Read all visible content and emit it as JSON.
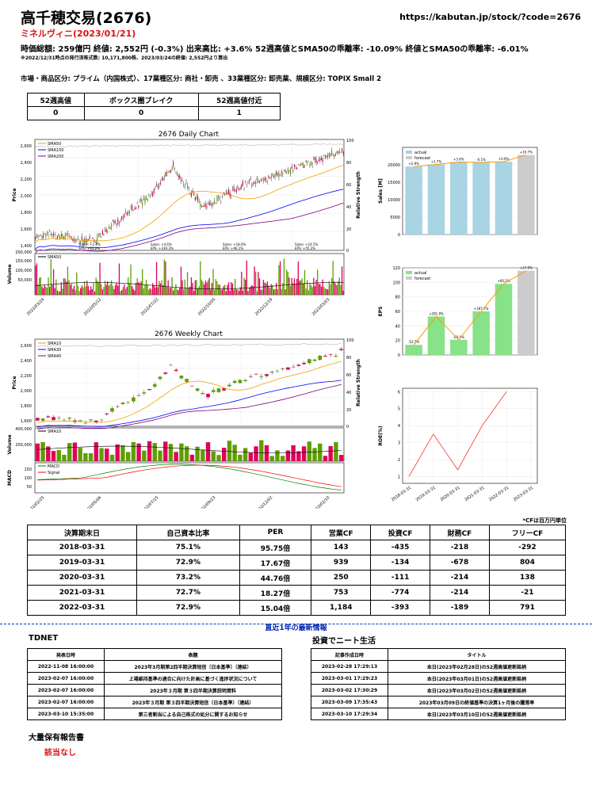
{
  "header": {
    "title": "高千穂交易(2676)",
    "url": "https://kabutan.jp/stock/?code=2676",
    "subtitle": "ミネルヴィニ(2023/01/21)",
    "summary": "時価総額: 259億円  終値: 2,552円 (-0.3%)  出来高比: +3.6%  52週高値とSMA50の乖離率: -10.09%  終値とSMA50の乖離率: -6.01%",
    "note": "※2022/12/31時点の発行済株式数: 10,171,800株、2023/03/24の終値: 2,552円より算出",
    "market": "市場・商品区分: プライム（内国株式）、17業種区分: 商社・卸売 、33業種区分: 卸売業、規模区分: TOPIX Small 2"
  },
  "table52": {
    "headers": [
      "52週高値",
      "ボックス圏ブレイク",
      "52週高値付近"
    ],
    "values": [
      "0",
      "0",
      "1"
    ]
  },
  "daily": {
    "title": "2676 Daily Chart",
    "ylabel": "Price",
    "ylabel2": "Relative Strength",
    "vol_label": "Volume",
    "legend": [
      "SMA50",
      "SMA150",
      "SMA200"
    ],
    "vol_legend": "SMA50",
    "yticks": [
      "2,600",
      "2,400",
      "2,200",
      "2,000",
      "1,800",
      "1,600",
      "1,400"
    ],
    "rsticks": [
      "100",
      "80",
      "60",
      "40",
      "20",
      "0"
    ],
    "vticks": [
      "200,000",
      "150,000",
      "100,000",
      "50,000"
    ],
    "xticks": [
      "2022/03/24",
      "2022/05/12",
      "2022/07/22",
      "2022/10/05",
      "2022/12/19",
      "2023/03/03"
    ],
    "annotations": [
      {
        "label": "Sales: +1.9%\nEPS: +63.2%"
      },
      {
        "label": "Sales: +4.6%\nEPS: +339.3%"
      },
      {
        "label": "Sales: +18.0%\nEPS: +96.1%"
      },
      {
        "label": "Sales: +14.5%\nEPS: +55.3%"
      }
    ]
  },
  "weekly": {
    "title": "2676 Weekly Chart",
    "ylabel": "Price",
    "ylabel2": "Relative Strength",
    "vol_label": "Volume",
    "macd_label": "MACD",
    "legend": [
      "SMA10",
      "SMA30",
      "SMA40"
    ],
    "vol_legend": "SMA10",
    "macd_legend": [
      "MACD",
      "Signal"
    ],
    "yticks": [
      "2,600",
      "2,400",
      "2,200",
      "2,000",
      "1,800",
      "1,600"
    ],
    "rsticks": [
      "100",
      "80",
      "60",
      "40",
      "20",
      "0"
    ],
    "vticks": [
      "400,000",
      "200,000"
    ],
    "mticks": [
      "150",
      "100",
      "50"
    ],
    "xticks": [
      "2022/02/25",
      "2022/05/06",
      "2022/07/15",
      "2022/09/23",
      "2022/12/02",
      "2023/02/10"
    ]
  },
  "chart_data": [
    {
      "type": "bar",
      "ylabel": "Sales [M]",
      "categories": [
        "2018-03",
        "2019-03",
        "2020-03",
        "2021-03",
        "2022-03",
        "2023-03"
      ],
      "series": [
        {
          "name": "actual",
          "values": [
            19500,
            20100,
            20800,
            20700,
            20900,
            null
          ]
        },
        {
          "name": "forecast",
          "values": [
            null,
            null,
            null,
            null,
            null,
            22800
          ]
        }
      ],
      "growth_labels": [
        "+2.9%",
        "+1.7%",
        "+3.6%",
        "-0.1%",
        "+0.9%",
        "+10.7%"
      ],
      "yticks": [
        "20000",
        "15000",
        "10000",
        "5000",
        "0"
      ],
      "ylim": [
        0,
        25000
      ],
      "colors": {
        "actual": "#a8d4e4",
        "forecast": "#cccccc",
        "line": "#ff9900"
      }
    },
    {
      "type": "bar",
      "ylabel": "EPS",
      "categories": [
        "2018-03",
        "2019-03",
        "2020-03",
        "2021-03",
        "2022-03",
        "2023-03"
      ],
      "series": [
        {
          "name": "actual",
          "values": [
            14,
            53,
            21,
            60,
            98,
            null
          ]
        },
        {
          "name": "forecast",
          "values": [
            null,
            null,
            null,
            null,
            null,
            116
          ]
        }
      ],
      "growth_labels": [
        "-52.7%",
        "+281.8%",
        "-60.0%",
        "+187.7%",
        "+60.2%",
        "+17.9%"
      ],
      "yticks": [
        "120",
        "100",
        "80",
        "60",
        "40",
        "20",
        "0"
      ],
      "ylim": [
        0,
        120
      ],
      "colors": {
        "actual": "#88e288",
        "forecast": "#cccccc",
        "line": "#ff9900"
      }
    },
    {
      "type": "line",
      "ylabel": "ROE(%)",
      "x": [
        "2018-03-31",
        "2019-03-31",
        "2020-03-31",
        "2021-03-31",
        "2022-03-31",
        "2023-03-31"
      ],
      "values": [
        1.0,
        3.5,
        1.4,
        4.0,
        6.0,
        null
      ],
      "yticks": [
        "6",
        "5",
        "4",
        "3",
        "2",
        "1"
      ],
      "ylim": [
        0.6,
        6.2
      ],
      "colors": {
        "line": "#ff5555"
      }
    }
  ],
  "finance": {
    "note": "*CFは百万円単位",
    "headers": [
      "決算期末日",
      "自己資本比率",
      "PER",
      "営業CF",
      "投資CF",
      "財務CF",
      "フリーCF"
    ],
    "rows": [
      [
        "2018-03-31",
        "75.1%",
        "95.75倍",
        "143",
        "-435",
        "-218",
        "-292"
      ],
      [
        "2019-03-31",
        "72.9%",
        "17.67倍",
        "939",
        "-134",
        "-678",
        "804"
      ],
      [
        "2020-03-31",
        "73.2%",
        "44.76倍",
        "250",
        "-111",
        "-214",
        "138"
      ],
      [
        "2021-03-31",
        "72.7%",
        "18.27倍",
        "753",
        "-774",
        "-214",
        "-21"
      ],
      [
        "2022-03-31",
        "72.9%",
        "15.04倍",
        "1,184",
        "-393",
        "-189",
        "791"
      ]
    ]
  },
  "separator": "直近1年の最新情報",
  "tdnet": {
    "title": "TDNET",
    "headers": [
      "発表日時",
      "表題"
    ],
    "rows": [
      [
        "2022-11-08 16:00:00",
        "2023年3月期第2四半期決算短信〔日本基準〕（連結）"
      ],
      [
        "2023-02-07 16:00:00",
        "上場維持基準の適合に向けた計画に基づく進捗状況について"
      ],
      [
        "2023-02-07 16:00:00",
        "2023年３月期 第３四半期決算説明資料"
      ],
      [
        "2023-02-07 16:00:00",
        "2023年３月期 第３四半期決算短信〔日本基準〕（連結）"
      ],
      [
        "2023-03-10 15:35:00",
        "第三者割当による自己株式の処分に関するお知らせ"
      ]
    ]
  },
  "blog": {
    "title": "投資でニート生活",
    "headers": [
      "記事作成日時",
      "タイトル"
    ],
    "rows": [
      [
        "2023-02-28 17:29:13",
        "本日(2023年02月28日)の52週高値更新銘柄"
      ],
      [
        "2023-03-01 17:29:23",
        "本日(2023年03月01日)の52週高値更新銘柄"
      ],
      [
        "2023-03-02 17:30:29",
        "本日(2023年03月02日)の52週高値更新銘柄"
      ],
      [
        "2023-03-09 17:35:43",
        "2023年03月09日の終値基準の決算1ヶ月後の騰落率"
      ],
      [
        "2023-03-10 17:29:34",
        "本日(2023年03月10日)の52週高値更新銘柄"
      ]
    ]
  },
  "holdings": {
    "title": "大量保有報告書",
    "value": "該当なし"
  }
}
